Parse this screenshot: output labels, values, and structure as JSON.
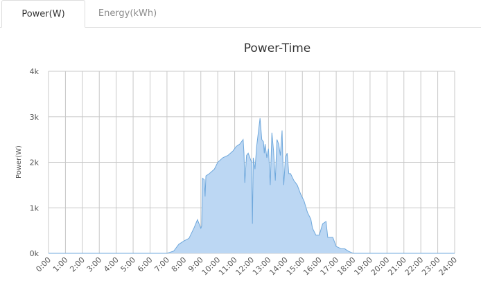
{
  "tabs": [
    {
      "label": "Power(W)",
      "active": true
    },
    {
      "label": "Energy(kWh)",
      "active": false
    }
  ],
  "chart_data": {
    "type": "area",
    "title": "Power-Time",
    "ylabel": "Power(W)",
    "xlabel": "",
    "x_ticks": [
      "0:00",
      "1:00",
      "2:00",
      "3:00",
      "4:00",
      "5:00",
      "6:00",
      "7:00",
      "8:00",
      "9:00",
      "10:00",
      "11:00",
      "12:00",
      "13:00",
      "14:00",
      "15:00",
      "16:00",
      "17:00",
      "18:00",
      "19:00",
      "20:00",
      "21:00",
      "22:00",
      "23:00",
      "24:00"
    ],
    "y_ticks": [
      "0k",
      "1k",
      "2k",
      "3k",
      "4k"
    ],
    "xlim": [
      0,
      24
    ],
    "ylim": [
      0,
      4000
    ],
    "grid": true,
    "series": [
      {
        "color": "#6fa8dc",
        "fill": "#bcd7f3",
        "x": [
          0,
          7.0,
          7.4,
          7.7,
          8.0,
          8.3,
          8.6,
          8.8,
          9.0,
          9.05,
          9.1,
          9.2,
          9.25,
          9.3,
          9.5,
          9.8,
          10.0,
          10.3,
          10.6,
          10.9,
          11.1,
          11.3,
          11.5,
          11.55,
          11.6,
          11.7,
          11.8,
          12.0,
          12.05,
          12.1,
          12.2,
          12.3,
          12.5,
          12.6,
          12.7,
          12.75,
          12.8,
          12.9,
          13.0,
          13.1,
          13.2,
          13.3,
          13.4,
          13.5,
          13.6,
          13.7,
          13.8,
          13.85,
          13.9,
          14.0,
          14.1,
          14.2,
          14.3,
          14.5,
          14.7,
          14.9,
          15.1,
          15.3,
          15.5,
          15.6,
          15.8,
          16.0,
          16.2,
          16.4,
          16.5,
          16.8,
          17.0,
          17.3,
          17.5,
          17.7,
          18.0,
          24
        ],
        "y": [
          0,
          0,
          50,
          200,
          270,
          330,
          560,
          740,
          550,
          600,
          1650,
          1620,
          1250,
          1700,
          1750,
          1850,
          2000,
          2100,
          2150,
          2250,
          2350,
          2400,
          2500,
          2200,
          1550,
          2150,
          2200,
          2000,
          650,
          2100,
          1850,
          2350,
          2970,
          2500,
          2450,
          2200,
          2400,
          2100,
          2300,
          1500,
          2650,
          2250,
          1600,
          2500,
          2400,
          2150,
          2700,
          2000,
          1500,
          2100,
          2200,
          1750,
          1750,
          1600,
          1500,
          1300,
          1150,
          900,
          750,
          550,
          400,
          400,
          650,
          700,
          350,
          350,
          150,
          100,
          100,
          50,
          0,
          0
        ]
      }
    ]
  }
}
